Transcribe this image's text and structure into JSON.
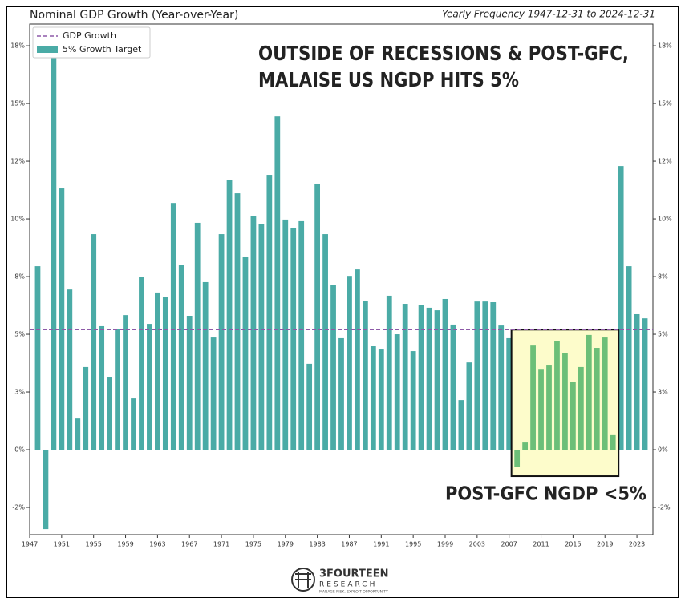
{
  "chart_data": {
    "type": "bar",
    "title": "Nominal GDP Growth (Year-over-Year)",
    "subtitle": "Yearly Frequency 1947-12-31 to 2024-12-31",
    "annotation": [
      "OUTSIDE OF RECESSIONS & POST-GFC,",
      "MALAISE US NGDP HITS 5%"
    ],
    "x": [
      1948,
      1949,
      1950,
      1951,
      1952,
      1953,
      1954,
      1955,
      1956,
      1957,
      1958,
      1959,
      1960,
      1961,
      1962,
      1963,
      1964,
      1965,
      1966,
      1967,
      1968,
      1969,
      1970,
      1971,
      1972,
      1973,
      1974,
      1975,
      1976,
      1977,
      1978,
      1979,
      1980,
      1981,
      1982,
      1983,
      1984,
      1985,
      1986,
      1987,
      1988,
      1989,
      1990,
      1991,
      1992,
      1993,
      1994,
      1995,
      1996,
      1997,
      1998,
      1999,
      2000,
      2001,
      2002,
      2003,
      2004,
      2005,
      2006,
      2007,
      2008,
      2009,
      2010,
      2011,
      2012,
      2013,
      2014,
      2015,
      2016,
      2017,
      2018,
      2019,
      2020,
      2021,
      2022,
      2023,
      2024
    ],
    "series": [
      {
        "name": "5% Growth Target",
        "color": "#4aaba6",
        "values": [
          7.95,
          -3.44,
          18.3,
          11.32,
          6.94,
          1.35,
          3.58,
          9.34,
          5.35,
          3.16,
          5.24,
          5.83,
          2.22,
          7.5,
          5.45,
          6.81,
          6.63,
          10.69,
          7.99,
          5.8,
          9.83,
          7.26,
          4.86,
          9.34,
          11.67,
          11.11,
          8.37,
          10.14,
          9.79,
          11.91,
          14.44,
          9.97,
          9.62,
          9.9,
          3.72,
          11.53,
          9.34,
          7.15,
          4.83,
          7.53,
          7.81,
          6.46,
          4.48,
          4.34,
          6.67,
          5.0,
          6.32,
          4.27,
          6.28,
          6.15,
          6.04,
          6.53,
          5.42,
          2.15,
          3.78,
          6.42,
          6.42,
          6.39,
          5.38,
          4.83,
          -0.73,
          0.31,
          4.51,
          3.5,
          3.68,
          4.72,
          4.2,
          2.95,
          3.58,
          4.97,
          4.41,
          4.86,
          0.63,
          12.29,
          7.95,
          5.87,
          5.69
        ]
      }
    ],
    "reference_line": {
      "name": "GDP Growth",
      "value": 5.2,
      "color": "#8e5aa8"
    },
    "highlight": {
      "start": 2008,
      "end": 2020,
      "color": "#6cbf78",
      "fill": "#fdfccb",
      "label": "POST-GFC NGDP <5%"
    },
    "xlim": [
      1947,
      2025
    ],
    "xticks": [
      1947,
      1951,
      1955,
      1959,
      1963,
      1967,
      1971,
      1975,
      1979,
      1983,
      1987,
      1991,
      1995,
      1999,
      2003,
      2007,
      2011,
      2015,
      2019,
      2023
    ],
    "ylim": [
      -3.68,
      18.44
    ],
    "yticks": [
      {
        "value": 17.5,
        "label": "18%"
      },
      {
        "value": 15,
        "label": "15%"
      },
      {
        "value": 12.5,
        "label": "12%"
      },
      {
        "value": 10,
        "label": "10%"
      },
      {
        "value": 7.5,
        "label": "8%"
      },
      {
        "value": 5,
        "label": "5%"
      },
      {
        "value": 2.5,
        "label": "3%"
      },
      {
        "value": 0,
        "label": "0%"
      },
      {
        "value": -2.5,
        "label": "-2%"
      }
    ],
    "legend": "upper left",
    "logo": {
      "name": "3FOURTEEN",
      "sub": "RESEARCH",
      "tagline": "MANAGE RISK. EXPLOIT OPPORTUNITY"
    }
  }
}
